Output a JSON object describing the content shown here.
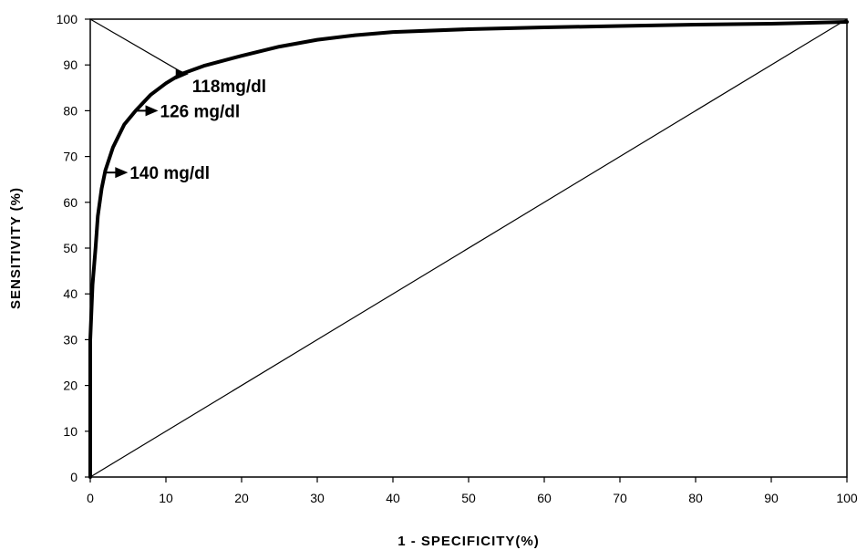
{
  "chart_data": {
    "type": "line",
    "title": "",
    "xlabel": "1 - SPECIFICITY(%)",
    "ylabel": "SENSITIVITY (%)",
    "xlim": [
      0,
      100
    ],
    "ylim": [
      0,
      100
    ],
    "xticks": [
      "0",
      "10",
      "20",
      "30",
      "40",
      "50",
      "60",
      "70",
      "80",
      "90",
      "100"
    ],
    "yticks": [
      "0",
      "10",
      "20",
      "30",
      "40",
      "50",
      "60",
      "70",
      "80",
      "90",
      "100"
    ],
    "grid": false,
    "legend": "none",
    "colors": {
      "curve": "#000000",
      "reference": "#000000",
      "frame": "#000000"
    },
    "series": [
      {
        "style": "thick",
        "points": [
          [
            0,
            0
          ],
          [
            0,
            30
          ],
          [
            0.3,
            42
          ],
          [
            0.7,
            50
          ],
          [
            1,
            57
          ],
          [
            1.5,
            63
          ],
          [
            2,
            67
          ],
          [
            3,
            72
          ],
          [
            4.5,
            77
          ],
          [
            6,
            80
          ],
          [
            8,
            83.5
          ],
          [
            10,
            86
          ],
          [
            12,
            88
          ],
          [
            15,
            89.8
          ],
          [
            20,
            92
          ],
          [
            25,
            94
          ],
          [
            30,
            95.5
          ],
          [
            35,
            96.5
          ],
          [
            40,
            97.2
          ],
          [
            50,
            97.8
          ],
          [
            60,
            98.2
          ],
          [
            70,
            98.5
          ],
          [
            80,
            98.8
          ],
          [
            90,
            99
          ],
          [
            100,
            99.4
          ]
        ]
      },
      {
        "style": "thin",
        "points": [
          [
            0,
            0
          ],
          [
            100,
            100
          ]
        ]
      },
      {
        "style": "thin",
        "points": [
          [
            0,
            100
          ],
          [
            12.5,
            88
          ]
        ]
      }
    ],
    "annotations": [
      {
        "text": "118mg/dl",
        "point": [
          12.5,
          88
        ]
      },
      {
        "text": "126 mg/dl",
        "point": [
          8.5,
          80
        ]
      },
      {
        "text": "140 mg/dl",
        "point": [
          4.5,
          66.5
        ]
      }
    ]
  }
}
